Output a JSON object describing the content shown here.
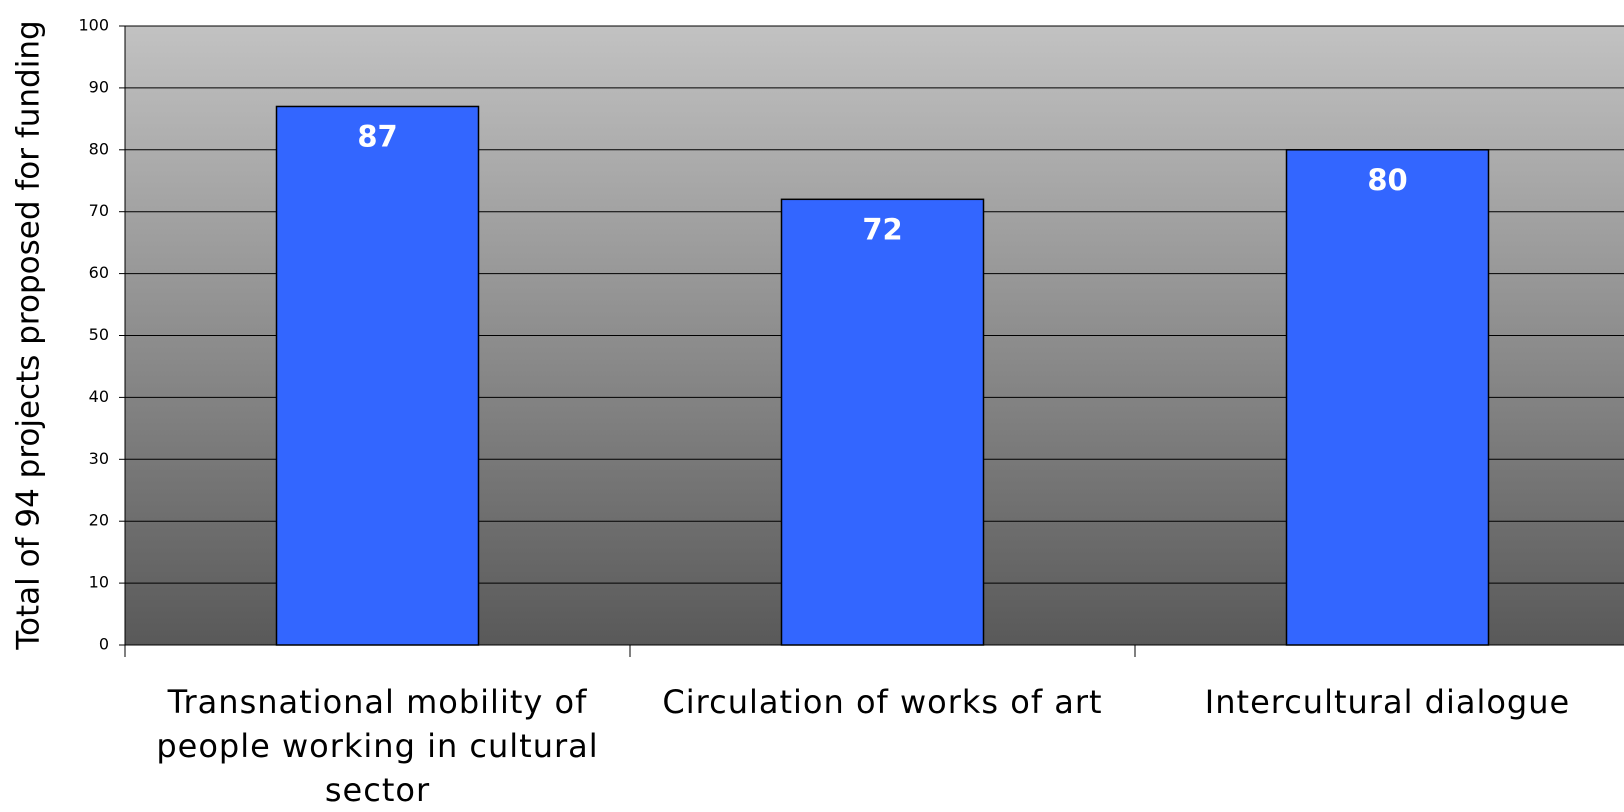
{
  "chart_data": {
    "type": "bar",
    "y_label": "Total of 94 projects proposed for funding",
    "categories": [
      "Transnational mobility of people working in cultural sector",
      "Circulation of works of art",
      "Intercultural dialogue"
    ],
    "values": [
      87,
      72,
      80
    ],
    "color": "#3366ff",
    "ylim": [
      0,
      100
    ],
    "yticks": [
      0,
      10,
      20,
      30,
      40,
      50,
      60,
      70,
      80,
      90,
      100
    ],
    "grid": true
  }
}
